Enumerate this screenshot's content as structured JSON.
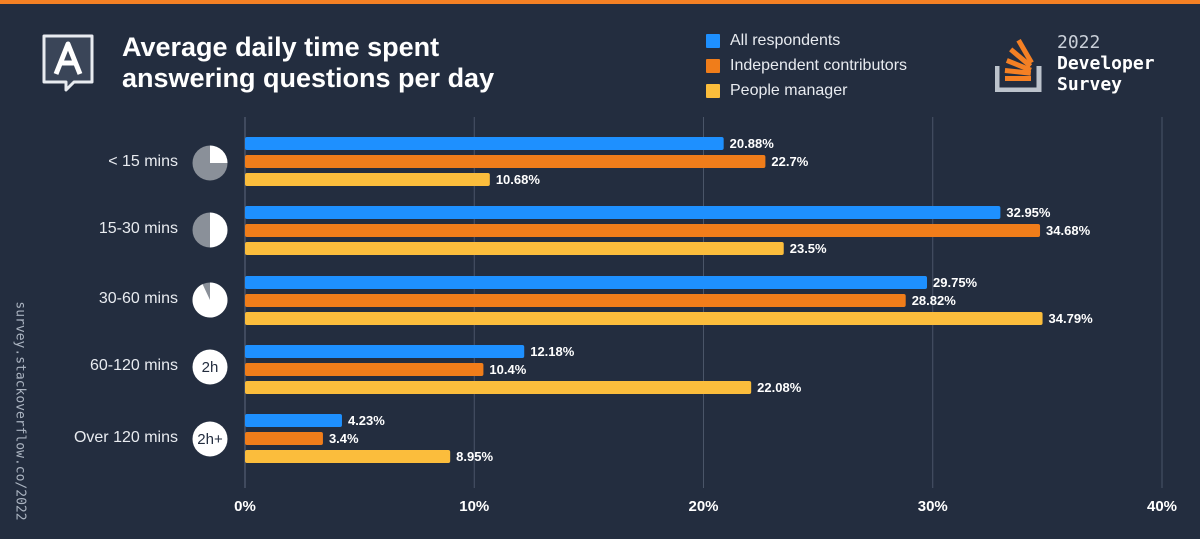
{
  "header": {
    "title": "Average daily time spent\nanswering questions per day"
  },
  "brand": {
    "year": "2022",
    "line1": "Developer",
    "line2": "Survey"
  },
  "side_url": "survey.stackoverflow.co/2022",
  "colors": {
    "background": "#232d3f",
    "accent": "#f48024",
    "series": [
      "#1e90ff",
      "#f07d1a",
      "#fbbd3c"
    ],
    "grid": "#4a5568"
  },
  "icons": [
    "quarter-pie-icon",
    "half-pie-icon",
    "nearly-full-pie-icon",
    "2h-circle-icon",
    "2h-plus-circle-icon"
  ],
  "category_badges": [
    "",
    "",
    "",
    "2h",
    "2h+"
  ],
  "chart_data": {
    "type": "bar",
    "orientation": "horizontal",
    "categories": [
      "< 15 mins",
      "15-30 mins",
      "30-60 mins",
      "60-120 mins",
      "Over 120 mins"
    ],
    "series": [
      {
        "name": "All respondents",
        "values": [
          20.88,
          32.95,
          29.75,
          12.18,
          4.23
        ],
        "labels": [
          "20.88%",
          "32.95%",
          "29.75%",
          "12.18%",
          "4.23%"
        ]
      },
      {
        "name": "Independent contributors",
        "values": [
          22.7,
          34.68,
          28.82,
          10.4,
          3.4
        ],
        "labels": [
          "22.7%",
          "34.68%",
          "28.82%",
          "10.4%",
          "3.4%"
        ]
      },
      {
        "name": "People manager",
        "values": [
          10.68,
          23.5,
          34.79,
          22.08,
          8.95
        ],
        "labels": [
          "10.68%",
          "23.5%",
          "34.79%",
          "22.08%",
          "8.95%"
        ]
      }
    ],
    "xlim": [
      0,
      40
    ],
    "xticks": [
      0,
      10,
      20,
      30,
      40
    ],
    "xtick_labels": [
      "0%",
      "10%",
      "20%",
      "30%",
      "40%"
    ],
    "title": "Average daily time spent answering questions per day",
    "grid": true,
    "legend": "top-right"
  }
}
